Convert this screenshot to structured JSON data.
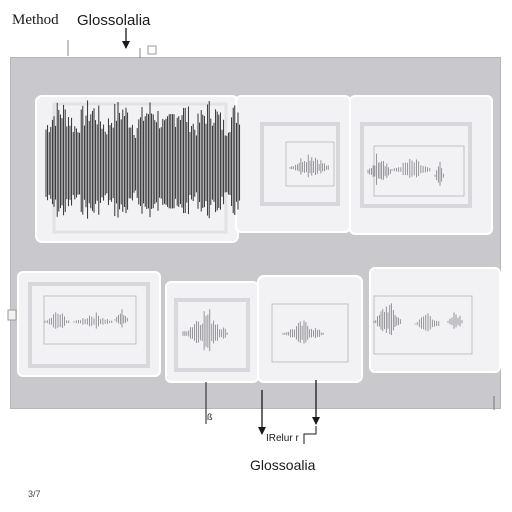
{
  "labels": {
    "method": "Method",
    "heading": "Glossolalia",
    "bottom_label": "Glossoalia",
    "arrow_label": "IRelur r",
    "small_mark": "ß",
    "page_number": "3/7"
  },
  "colors": {
    "panel": "#c9c9cd",
    "frame": "#f2f2f4",
    "waveform": "#1e1e1e",
    "faint_waveform": "#7a7a80",
    "arrow": "#1a1a1a"
  },
  "icons": {
    "arrow": "arrow-down-icon"
  }
}
